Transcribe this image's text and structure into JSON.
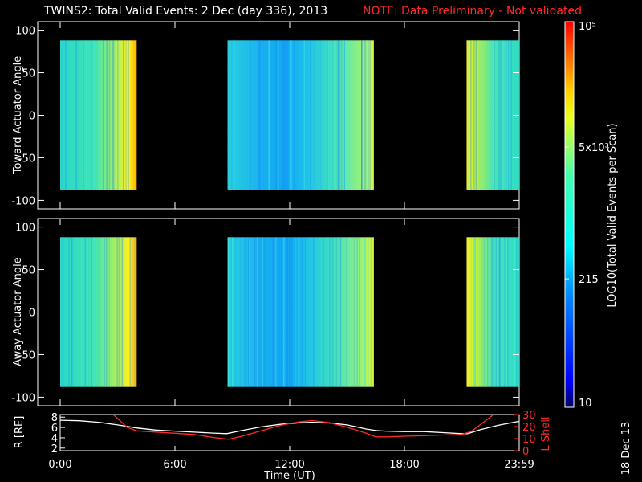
{
  "title": "TWINS2: Total Valid Events:  2 Dec (day 336), 2013",
  "note": "NOTE: Data Preliminary - Not validated",
  "stamp": "18 Dec 13",
  "colorbar": {
    "label": "LOG10(Total Valid Events per Scan)",
    "tick_labels": [
      "10",
      "215",
      "5x10³",
      "10⁵"
    ],
    "tick_values": [
      10,
      215,
      5000,
      100000
    ],
    "scale": "log",
    "range": [
      10,
      100000
    ],
    "colormap": "jet",
    "colors": [
      "#000080",
      "#0000ff",
      "#00ffff",
      "#ffff00",
      "#ff0000"
    ]
  },
  "chart_data": [
    {
      "type": "heatmap",
      "panel": "top",
      "ylabel": "Toward Actuator Angle",
      "xlim": [
        0,
        24
      ],
      "ylim": [
        -110,
        110
      ],
      "yticks": [
        100,
        50,
        0,
        -50,
        -100
      ],
      "xticks": [
        0,
        6,
        12,
        18,
        24
      ],
      "data_angle_range": [
        -88,
        88
      ],
      "data_intervals_hours": [
        [
          0,
          4
        ],
        [
          8.75,
          16.4
        ],
        [
          21.25,
          24
        ]
      ],
      "background": "#000000"
    },
    {
      "type": "heatmap",
      "panel": "middle",
      "ylabel": "Away Actuator Angle",
      "xlim": [
        0,
        24
      ],
      "ylim": [
        -110,
        110
      ],
      "yticks": [
        100,
        50,
        0,
        -50,
        -100
      ],
      "xticks": [
        0,
        6,
        12,
        18,
        24
      ],
      "data_angle_range": [
        -88,
        88
      ],
      "data_intervals_hours": [
        [
          0,
          4
        ],
        [
          8.75,
          16.4
        ],
        [
          21.25,
          24
        ]
      ],
      "background": "#000000"
    },
    {
      "type": "line",
      "panel": "bottom",
      "xlabel": "Time (UT)",
      "xtick_labels": [
        "0:00",
        "6:00",
        "12:00",
        "18:00",
        "23:59"
      ],
      "xticks": [
        0,
        6,
        12,
        18,
        24
      ],
      "ylabel_left": "R [RE]",
      "ylabel_right": "L Shell",
      "ylim_left": [
        1.5,
        8.5
      ],
      "yticks_left": [
        "8",
        "6",
        "4",
        "2"
      ],
      "ylim_right": [
        0,
        30
      ],
      "yticks_right": [
        "30",
        "20",
        "10",
        "0"
      ],
      "series": [
        {
          "axis": "left",
          "color": "#ffffff",
          "x": [
            0,
            1,
            2,
            3,
            4,
            5,
            6,
            7,
            8,
            8.7,
            9.5,
            10.5,
            11.5,
            12.5,
            13.2,
            14,
            15,
            16,
            16.5,
            17,
            18,
            19,
            20,
            21,
            21.3,
            22,
            23,
            24
          ],
          "y": [
            7.4,
            7.3,
            7.0,
            6.5,
            5.9,
            5.5,
            5.3,
            5.1,
            4.9,
            4.8,
            5.4,
            6.1,
            6.6,
            6.9,
            7.0,
            6.9,
            6.5,
            5.7,
            5.4,
            5.3,
            5.2,
            5.2,
            5.0,
            4.8,
            4.8,
            5.6,
            6.5,
            7.2
          ]
        },
        {
          "axis": "right",
          "color": "#ff2a2a",
          "x": [
            2.5,
            3.5,
            4,
            5,
            6,
            7,
            8,
            8.8,
            9.5,
            10.5,
            11.5,
            12.5,
            13.2,
            14,
            15,
            16,
            16.5,
            17,
            18,
            19,
            20,
            21,
            21.5,
            22.5,
            23
          ],
          "y": [
            34,
            19.5,
            16.5,
            15.5,
            14.5,
            13.5,
            11,
            9.5,
            12,
            16.5,
            21,
            24,
            25,
            23.5,
            19.5,
            14.5,
            11.5,
            11.5,
            12,
            12.5,
            13,
            13.5,
            16,
            28,
            35
          ]
        }
      ]
    }
  ]
}
